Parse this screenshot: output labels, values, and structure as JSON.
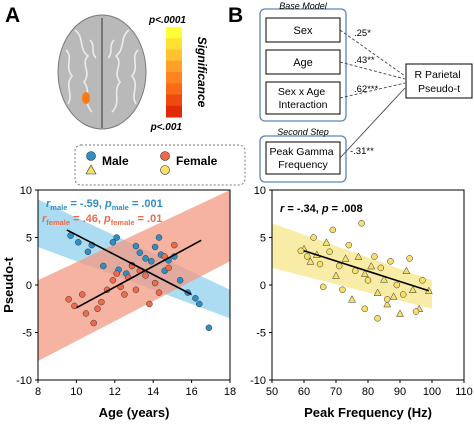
{
  "panels": {
    "A": {
      "label": "A"
    },
    "B": {
      "label": "B"
    }
  },
  "brain_inset": {
    "sig_top": "p<.0001",
    "sig_bottom": "p<.001",
    "sig_axis": "Significance",
    "colorbar": [
      "#ffff33",
      "#ffe033",
      "#ffc233",
      "#ffa028",
      "#ff8420",
      "#f86a18",
      "#ee4a10",
      "#e22a0a"
    ],
    "blob_color": "#ff7a10"
  },
  "legend": {
    "male": "Male",
    "female": "Female",
    "male_color": "#2f8fc4",
    "female_color": "#ee6a4a",
    "yellow_color": "#f7df6a"
  },
  "path_model": {
    "base_title": "Base Model",
    "second_title": "Second Step",
    "boxes": [
      "Sex",
      "Age",
      "Sex x Age\nInteraction",
      "Peak Gamma\nFrequency"
    ],
    "outcome": "R Parietal\nPseudo-t",
    "coefs": [
      ".25*",
      ".43**",
      ".62***",
      "-.31**"
    ]
  },
  "chart_data": [
    {
      "type": "scatter",
      "xlabel": "Age (years)",
      "ylabel": "Pseudo-t",
      "xlim": [
        8,
        18
      ],
      "ylim": [
        -10,
        10
      ],
      "xticks": [
        8,
        10,
        12,
        14,
        16,
        18
      ],
      "yticks": [
        -10,
        -5,
        0,
        5,
        10
      ],
      "annotations": [
        {
          "text": "r_male = -.59, p_male = .001",
          "r_label": "r",
          "r_sub": "male",
          "r_val": " = -.59, ",
          "p_label": "p",
          "p_sub": "male",
          "p_val": " = .001",
          "color": "#2f8fc4"
        },
        {
          "text": "r_female = .46, p_female = .01",
          "r_label": "r",
          "r_sub": "female",
          "r_val": " = .46, ",
          "p_label": "p",
          "p_sub": "female",
          "p_val": " = .01",
          "color": "#ee6a4a"
        }
      ],
      "series": [
        {
          "name": "Male",
          "color": "#2f8fc4",
          "band_color": "#8fd0ee",
          "fit": {
            "x": [
              9.5,
              16
            ],
            "y": [
              5.8,
              -1.0
            ]
          },
          "band": {
            "x": [
              8,
              18
            ],
            "upper": [
              9.0,
              -0.5
            ],
            "lower": [
              4.0,
              -3.5
            ]
          },
          "points": [
            [
              9.7,
              5.2
            ],
            [
              10.1,
              4.5
            ],
            [
              10.6,
              3.5
            ],
            [
              10.8,
              4.2
            ],
            [
              11.4,
              2.0
            ],
            [
              11.9,
              4.5
            ],
            [
              12.1,
              5.0
            ],
            [
              12.2,
              1.6
            ],
            [
              12.6,
              1.2
            ],
            [
              12.9,
              2.1
            ],
            [
              13.1,
              4.1
            ],
            [
              13.3,
              3.4
            ],
            [
              13.6,
              2.8
            ],
            [
              13.9,
              2.5
            ],
            [
              14.1,
              4.0
            ],
            [
              14.3,
              5.0
            ],
            [
              14.4,
              3.2
            ],
            [
              14.6,
              1.5
            ],
            [
              14.8,
              2.6
            ],
            [
              15.1,
              3.0
            ],
            [
              15.4,
              0.5
            ],
            [
              15.8,
              -0.8
            ],
            [
              16.2,
              -1.4
            ],
            [
              16.4,
              -2.0
            ],
            [
              16.9,
              -4.5
            ]
          ]
        },
        {
          "name": "Female",
          "color": "#ee6a4a",
          "band_color": "#f49a82",
          "fit": {
            "x": [
              10,
              16.5
            ],
            "y": [
              -2.4,
              4.7
            ]
          },
          "band": {
            "x": [
              8,
              18
            ],
            "upper": [
              0.5,
              10.0
            ],
            "lower": [
              -8.0,
              2.5
            ]
          },
          "points": [
            [
              9.6,
              -1.5
            ],
            [
              9.9,
              -2.2
            ],
            [
              10.3,
              -1.0
            ],
            [
              10.5,
              -3.0
            ],
            [
              10.9,
              -4.0
            ],
            [
              11.1,
              -2.5
            ],
            [
              11.3,
              -1.8
            ],
            [
              11.6,
              -0.5
            ],
            [
              11.9,
              0.5
            ],
            [
              12.1,
              1.2
            ],
            [
              12.3,
              -0.2
            ],
            [
              12.5,
              -1.0
            ],
            [
              12.7,
              0.8
            ],
            [
              12.9,
              2.0
            ],
            [
              13.1,
              -0.5
            ],
            [
              13.3,
              1.5
            ],
            [
              13.6,
              1.0
            ],
            [
              13.8,
              -2.0
            ],
            [
              14.1,
              0.2
            ],
            [
              14.3,
              -0.8
            ],
            [
              14.6,
              3.0
            ],
            [
              14.8,
              1.8
            ],
            [
              15.1,
              4.2
            ]
          ]
        }
      ]
    },
    {
      "type": "scatter",
      "xlabel": "Peak Frequency (Hz)",
      "xlim": [
        50,
        110
      ],
      "ylim": [
        -10,
        10
      ],
      "xticks": [
        50,
        60,
        70,
        80,
        90,
        100,
        110
      ],
      "yticks": [
        -10,
        -5,
        0,
        5,
        10
      ],
      "annotation": {
        "r_label": "r",
        "r_val": " = -.34, ",
        "p_label": "p",
        "p_val": " = .008"
      },
      "fit": {
        "x": [
          60,
          99
        ],
        "y": [
          3.6,
          -0.6
        ]
      },
      "band": {
        "x": [
          50,
          100
        ],
        "upper": [
          6.5,
          0.5
        ],
        "lower": [
          1.8,
          -2.5
        ]
      },
      "band_color": "#f8eca6",
      "point_color": "#f7df6a",
      "series": [
        {
          "name": "Male",
          "marker": "triangle",
          "points": [
            [
              60,
              3.8
            ],
            [
              62,
              2.5
            ],
            [
              64,
              3.2
            ],
            [
              67,
              4.5
            ],
            [
              70,
              1.0
            ],
            [
              73,
              2.8
            ],
            [
              75,
              -1.5
            ],
            [
              77,
              3.0
            ],
            [
              79,
              1.2
            ],
            [
              81,
              2.0
            ],
            [
              83,
              -0.8
            ],
            [
              85,
              0.6
            ],
            [
              86,
              -2.0
            ],
            [
              88,
              -1.2
            ],
            [
              90,
              -3.0
            ],
            [
              92,
              1.5
            ],
            [
              94,
              -0.5
            ],
            [
              96,
              -2.5
            ],
            [
              99,
              -0.6
            ]
          ]
        },
        {
          "name": "Female",
          "marker": "circle",
          "points": [
            [
              59,
              3.6
            ],
            [
              61,
              3.0
            ],
            [
              63,
              5.0
            ],
            [
              65,
              2.2
            ],
            [
              66,
              -0.2
            ],
            [
              68,
              3.5
            ],
            [
              69,
              5.8
            ],
            [
              71,
              2.0
            ],
            [
              72,
              -0.5
            ],
            [
              74,
              4.2
            ],
            [
              76,
              1.5
            ],
            [
              78,
              6.5
            ],
            [
              79,
              -2.5
            ],
            [
              80,
              0.5
            ],
            [
              82,
              3.0
            ],
            [
              83,
              -3.5
            ],
            [
              84,
              1.8
            ],
            [
              86,
              -1.5
            ],
            [
              87,
              2.5
            ],
            [
              89,
              0.0
            ],
            [
              91,
              -1.0
            ],
            [
              93,
              2.8
            ],
            [
              95,
              -2.8
            ],
            [
              97,
              0.5
            ]
          ]
        }
      ]
    }
  ]
}
